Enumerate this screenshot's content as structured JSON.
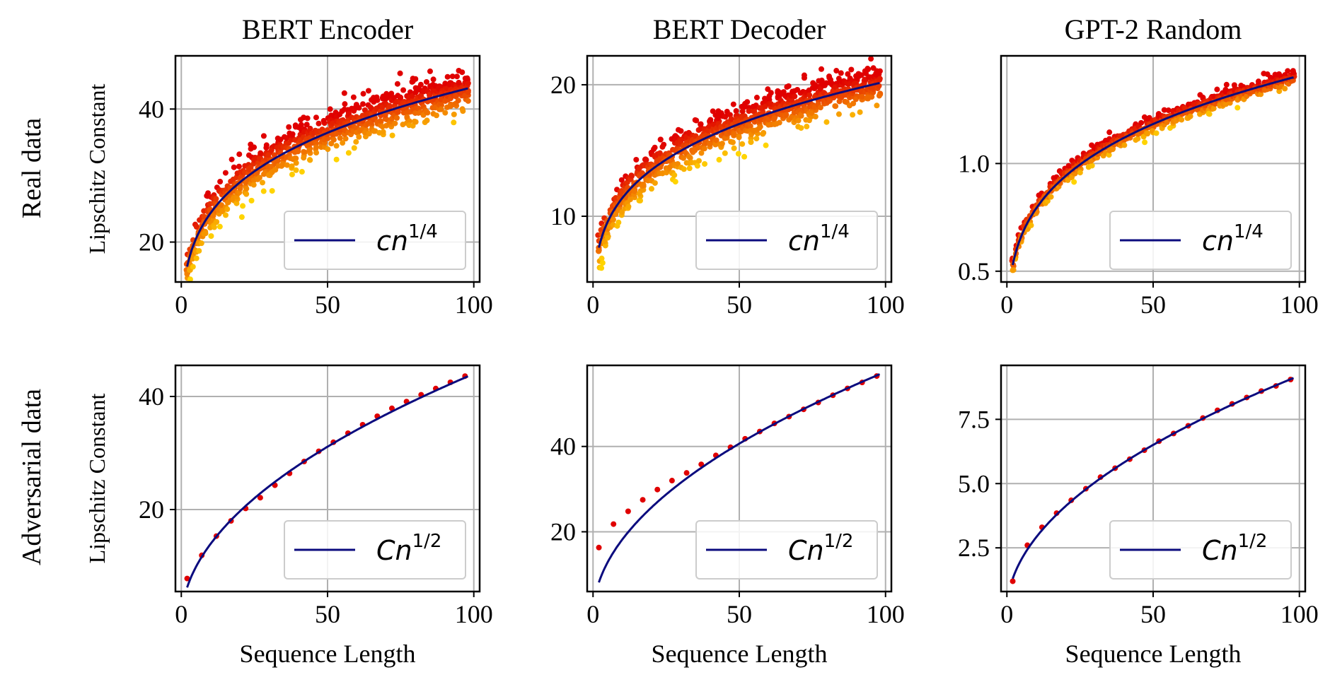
{
  "figure": {
    "row_labels": [
      "Real data",
      "Adversarial data"
    ],
    "colors": {
      "fit_line": "#0b0b7e",
      "scatter_low": "#ffd400",
      "scatter_high": "#e00000",
      "grid": "#b0b0b0"
    }
  },
  "chart_data": [
    {
      "type": "scatter",
      "panel": "real-bert-encoder",
      "row": 0,
      "col": 0,
      "title": "BERT Encoder",
      "xlabel": "",
      "ylabel": "Lipschitz Constant",
      "xlim": [
        -2,
        102
      ],
      "ylim": [
        14,
        48
      ],
      "xticks": [
        0,
        50,
        100
      ],
      "yticks": [
        20,
        40
      ],
      "ytick_labels": [
        "20",
        "40"
      ],
      "grid": true,
      "legend_position": "lower-right",
      "fit": {
        "form": "power",
        "coef": 13.7,
        "exponent": 0.25
      },
      "noise": 1.6,
      "jitter": "cloud",
      "legend": {
        "prefix": "cn",
        "sup": "1/4"
      }
    },
    {
      "type": "scatter",
      "panel": "real-bert-decoder",
      "row": 0,
      "col": 1,
      "title": "BERT Decoder",
      "xlabel": "",
      "ylabel": "",
      "xlim": [
        -2,
        102
      ],
      "ylim": [
        5,
        22.2
      ],
      "xticks": [
        0,
        50,
        100
      ],
      "yticks": [
        10,
        20
      ],
      "ytick_labels": [
        "10",
        "20"
      ],
      "grid": true,
      "legend_position": "lower-right",
      "fit": {
        "form": "power",
        "coef": 6.4,
        "exponent": 0.25
      },
      "noise": 0.8,
      "jitter": "cloud",
      "legend": {
        "prefix": "cn",
        "sup": "1/4"
      }
    },
    {
      "type": "scatter",
      "panel": "real-gpt2-random",
      "row": 0,
      "col": 2,
      "title": "GPT-2 Random",
      "xlabel": "",
      "ylabel": "",
      "xlim": [
        -2,
        102
      ],
      "ylim": [
        0.45,
        1.5
      ],
      "xticks": [
        0,
        50,
        100
      ],
      "yticks": [
        0.5,
        1.0
      ],
      "ytick_labels": [
        "0.5",
        "1.0"
      ],
      "grid": true,
      "legend_position": "lower-right",
      "fit": {
        "form": "power",
        "coef": 0.445,
        "exponent": 0.25
      },
      "noise": 0.02,
      "jitter": "tight",
      "legend": {
        "prefix": "cn",
        "sup": "1/4"
      }
    },
    {
      "type": "scatter",
      "panel": "adv-bert-encoder",
      "row": 1,
      "col": 0,
      "title": "",
      "xlabel": "Sequence Length",
      "ylabel": "Lipschitz Constant",
      "xlim": [
        -2,
        102
      ],
      "ylim": [
        5.5,
        45.5
      ],
      "xticks": [
        0,
        50,
        100
      ],
      "yticks": [
        20,
        40
      ],
      "ytick_labels": [
        "20",
        "40"
      ],
      "grid": true,
      "legend_position": "lower-right",
      "fit": {
        "form": "power",
        "coef": 4.4,
        "exponent": 0.5
      },
      "points": {
        "x": [
          2,
          7,
          12,
          17,
          22,
          27,
          32,
          37,
          42,
          47,
          52,
          57,
          62,
          67,
          72,
          77,
          82,
          87,
          92,
          97
        ],
        "y": [
          7.8,
          11.9,
          15.3,
          18.0,
          20.2,
          22.1,
          24.3,
          26.4,
          28.5,
          30.3,
          31.9,
          33.5,
          35.0,
          36.5,
          37.9,
          39.1,
          40.3,
          41.4,
          42.5,
          43.6
        ]
      },
      "legend": {
        "prefix": "Cn",
        "sup": "1/2"
      }
    },
    {
      "type": "scatter",
      "panel": "adv-bert-decoder",
      "row": 1,
      "col": 1,
      "title": "",
      "xlabel": "Sequence Length",
      "ylabel": "",
      "xlim": [
        -2,
        102
      ],
      "ylim": [
        6,
        59
      ],
      "xticks": [
        0,
        50,
        100
      ],
      "yticks": [
        20,
        40
      ],
      "ytick_labels": [
        "20",
        "40"
      ],
      "grid": true,
      "legend_position": "lower-right",
      "fit": {
        "form": "power",
        "coef": 5.75,
        "exponent": 0.5
      },
      "points": {
        "x": [
          2,
          7,
          12,
          17,
          22,
          27,
          32,
          37,
          42,
          47,
          52,
          57,
          62,
          67,
          72,
          77,
          82,
          87,
          92,
          97
        ],
        "y": [
          16.3,
          21.8,
          24.8,
          27.5,
          29.9,
          32.0,
          33.8,
          35.8,
          37.9,
          39.8,
          41.8,
          43.5,
          45.4,
          47.0,
          48.7,
          50.3,
          52.0,
          53.6,
          55.0,
          56.5
        ]
      },
      "legend": {
        "prefix": "Cn",
        "sup": "1/2"
      }
    },
    {
      "type": "scatter",
      "panel": "adv-gpt2-random",
      "row": 1,
      "col": 2,
      "title": "",
      "xlabel": "Sequence Length",
      "ylabel": "",
      "xlim": [
        -2,
        102
      ],
      "ylim": [
        0.8,
        9.6
      ],
      "xticks": [
        0,
        50,
        100
      ],
      "yticks": [
        2.5,
        5.0,
        7.5
      ],
      "ytick_labels": [
        "2.5",
        "5.0",
        "7.5"
      ],
      "grid": true,
      "legend_position": "lower-right",
      "fit": {
        "form": "power",
        "coef": 0.92,
        "exponent": 0.5
      },
      "points": {
        "x": [
          2,
          7,
          12,
          17,
          22,
          27,
          32,
          37,
          42,
          47,
          52,
          57,
          62,
          67,
          72,
          77,
          82,
          87,
          92,
          97
        ],
        "y": [
          1.2,
          2.6,
          3.3,
          3.85,
          4.35,
          4.8,
          5.25,
          5.6,
          5.95,
          6.3,
          6.65,
          6.95,
          7.25,
          7.55,
          7.85,
          8.1,
          8.35,
          8.6,
          8.8,
          9.05
        ]
      },
      "legend": {
        "prefix": "Cn",
        "sup": "1/2"
      }
    }
  ]
}
